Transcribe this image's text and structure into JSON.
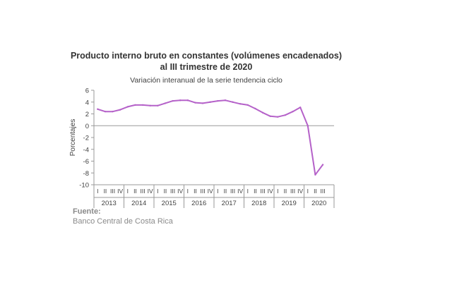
{
  "chart_data": {
    "type": "line",
    "title": "Producto interno bruto en constantes (volúmenes encadenados)",
    "title_line2": "al III trimestre de 2020",
    "subtitle": "Variación interanual de la serie tendencia ciclo",
    "ylabel": "Porcentajes",
    "xlabel": "",
    "ylim": [
      -10,
      6
    ],
    "yticks": [
      "6",
      "4",
      "2",
      "0",
      "-2",
      "-4",
      "-6",
      "-8",
      "-10"
    ],
    "grid": false,
    "quarter_labels": [
      "I",
      "II",
      "III",
      "IV"
    ],
    "years": [
      "2013",
      "2014",
      "2015",
      "2016",
      "2017",
      "2018",
      "2019",
      "2020"
    ],
    "x": [
      "2013-I",
      "2013-II",
      "2013-III",
      "2013-IV",
      "2014-I",
      "2014-II",
      "2014-III",
      "2014-IV",
      "2015-I",
      "2015-II",
      "2015-III",
      "2015-IV",
      "2016-I",
      "2016-II",
      "2016-III",
      "2016-IV",
      "2017-I",
      "2017-II",
      "2017-III",
      "2017-IV",
      "2018-I",
      "2018-II",
      "2018-III",
      "2018-IV",
      "2019-I",
      "2019-II",
      "2019-III",
      "2019-IV",
      "2020-I",
      "2020-II",
      "2020-III"
    ],
    "series": [
      {
        "values": [
          2.8,
          2.4,
          2.4,
          2.7,
          3.2,
          3.5,
          3.5,
          3.4,
          3.4,
          3.8,
          4.2,
          4.3,
          4.3,
          3.9,
          3.8,
          4.0,
          4.2,
          4.3,
          4.0,
          3.7,
          3.5,
          2.9,
          2.2,
          1.6,
          1.5,
          1.8,
          2.4,
          3.1,
          0.0,
          -8.3,
          -6.6
        ],
        "color": "#b562c9"
      }
    ],
    "axis_color": "#999999"
  },
  "source": {
    "label": "Fuente:",
    "text": "Banco Central de Costa Rica"
  }
}
